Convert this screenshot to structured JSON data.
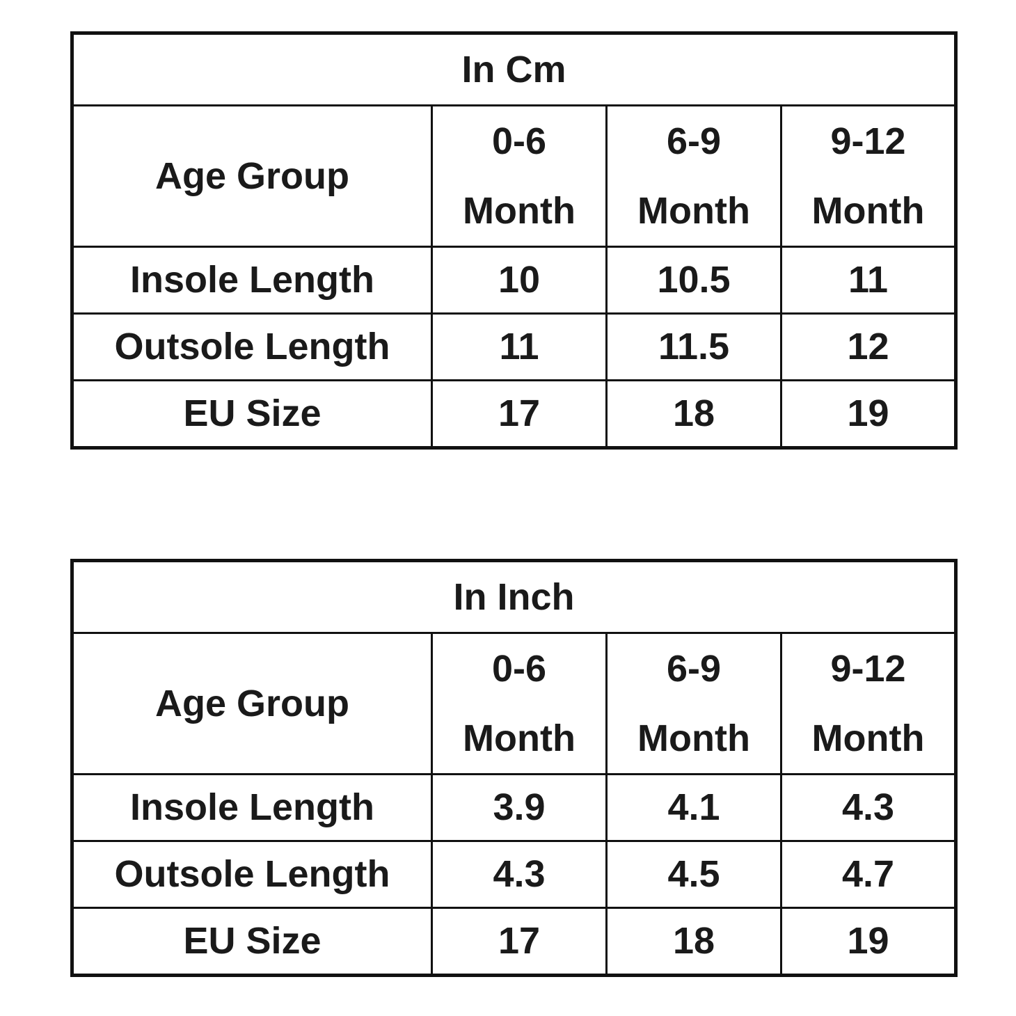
{
  "tables": [
    {
      "title": "In Cm",
      "header": [
        "Age Group",
        "0-6 Month",
        "6-9 Month",
        "9-12 Month"
      ],
      "rows": [
        [
          "Insole Length",
          "10",
          "10.5",
          "11"
        ],
        [
          "Outsole Length",
          "11",
          "11.5",
          "12"
        ],
        [
          "EU Size",
          "17",
          "18",
          "19"
        ]
      ]
    },
    {
      "title": "In Inch",
      "header": [
        "Age Group",
        "0-6 Month",
        "6-9 Month",
        "9-12 Month"
      ],
      "rows": [
        [
          "Insole Length",
          "3.9",
          "4.1",
          "4.3"
        ],
        [
          "Outsole Length",
          "4.3",
          "4.5",
          "4.7"
        ],
        [
          "EU Size",
          "17",
          "18",
          "19"
        ]
      ]
    }
  ]
}
